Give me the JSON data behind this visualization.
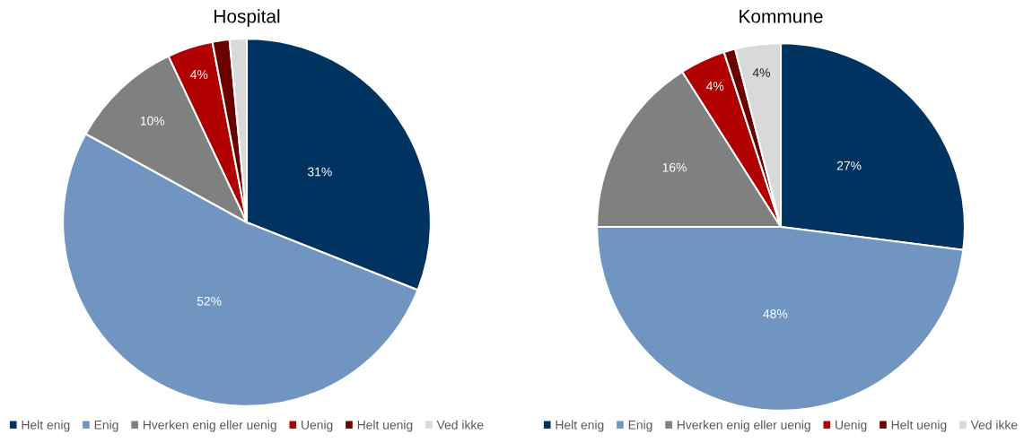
{
  "chart_data": [
    {
      "type": "pie",
      "title": "Hospital",
      "categories": [
        "Helt enig",
        "Enig",
        "Hverken enig eller uenig",
        "Uenig",
        "Helt uenig",
        "Ved ikke"
      ],
      "values": [
        31,
        52,
        10,
        4,
        1.5,
        1.5
      ],
      "colors": [
        "#003360",
        "#6f95c0",
        "#808080",
        "#b00000",
        "#6b0000",
        "#d9d9d9"
      ],
      "value_labels": [
        "31%",
        "52%",
        "10%",
        "4%",
        null,
        null
      ],
      "legend": "bottom"
    },
    {
      "type": "pie",
      "title": "Kommune",
      "categories": [
        "Helt enig",
        "Enig",
        "Hverken enig eller uenig",
        "Uenig",
        "Helt uenig",
        "Ved ikke"
      ],
      "values": [
        27,
        48,
        16,
        4,
        1,
        4
      ],
      "colors": [
        "#003360",
        "#6f95c0",
        "#808080",
        "#b00000",
        "#6b0000",
        "#d9d9d9"
      ],
      "value_labels": [
        "27%",
        "48%",
        "16%",
        "4%",
        null,
        "4%"
      ],
      "legend": "bottom"
    }
  ]
}
